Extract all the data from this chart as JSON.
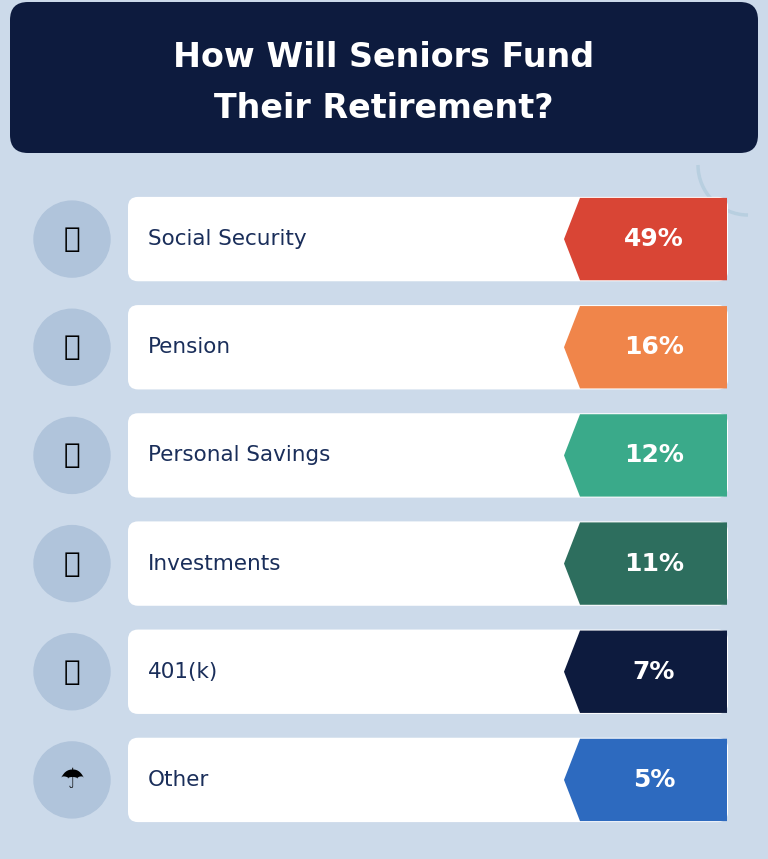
{
  "title_line1": "How Will Seniors Fund",
  "title_line2": "Their Retirement?",
  "title_bg_color": "#0d1b3e",
  "title_text_color": "#ffffff",
  "body_bg_color": "#ccdaea",
  "categories": [
    "Social Security",
    "Pension",
    "Personal Savings",
    "Investments",
    "401(k)",
    "Other"
  ],
  "percentages": [
    "49%",
    "16%",
    "12%",
    "11%",
    "7%",
    "5%"
  ],
  "tag_colors": [
    "#d94535",
    "#f0854a",
    "#3aaa8a",
    "#2d6e5e",
    "#0d1b3e",
    "#2d6abf"
  ],
  "row_bg_color": "#ffffff",
  "label_text_color": "#1a2e5a",
  "pct_text_color": "#ffffff",
  "icon_circle_color": "#b0c4db",
  "deco_circle_color": "#b8cfe0",
  "fig_width": 7.68,
  "fig_height": 8.59,
  "dpi": 100
}
